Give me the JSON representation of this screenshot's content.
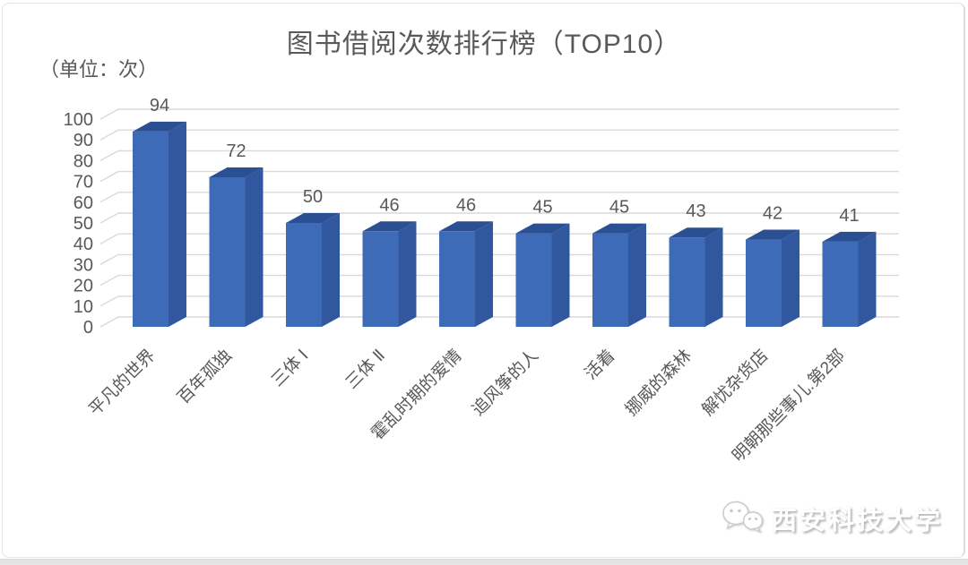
{
  "page": {
    "title": "图书借阅次数排行榜（TOP10）",
    "unit_label": "（单位：次）"
  },
  "watermark": {
    "text": "西安科技大学",
    "icon": "wechat-icon"
  },
  "chart_data": {
    "type": "bar",
    "style": "3d",
    "title": "图书借阅次数排行榜（TOP10）",
    "subtitle_unit": "（单位：次）",
    "categories": [
      "平凡的世界",
      "百年孤独",
      "三体 Ⅰ",
      "三体 Ⅱ",
      "霍乱时期的爱情",
      "追风筝的人",
      "活着",
      "挪威的森林",
      "解忧杂货店",
      "明朝那些事儿.第2部"
    ],
    "values": [
      94,
      72,
      50,
      46,
      46,
      45,
      45,
      43,
      42,
      41
    ],
    "value_labels_shown": true,
    "ylim": [
      0,
      100
    ],
    "ytick_step": 10,
    "xlabel": "",
    "ylabel": "",
    "grid": true,
    "legend": "none",
    "colors": {
      "bar_front": "#3E6BB8",
      "bar_top": "#2A4F93",
      "bar_side": "#31589E",
      "grid": "#D9D9D9",
      "text": "#595959"
    }
  }
}
